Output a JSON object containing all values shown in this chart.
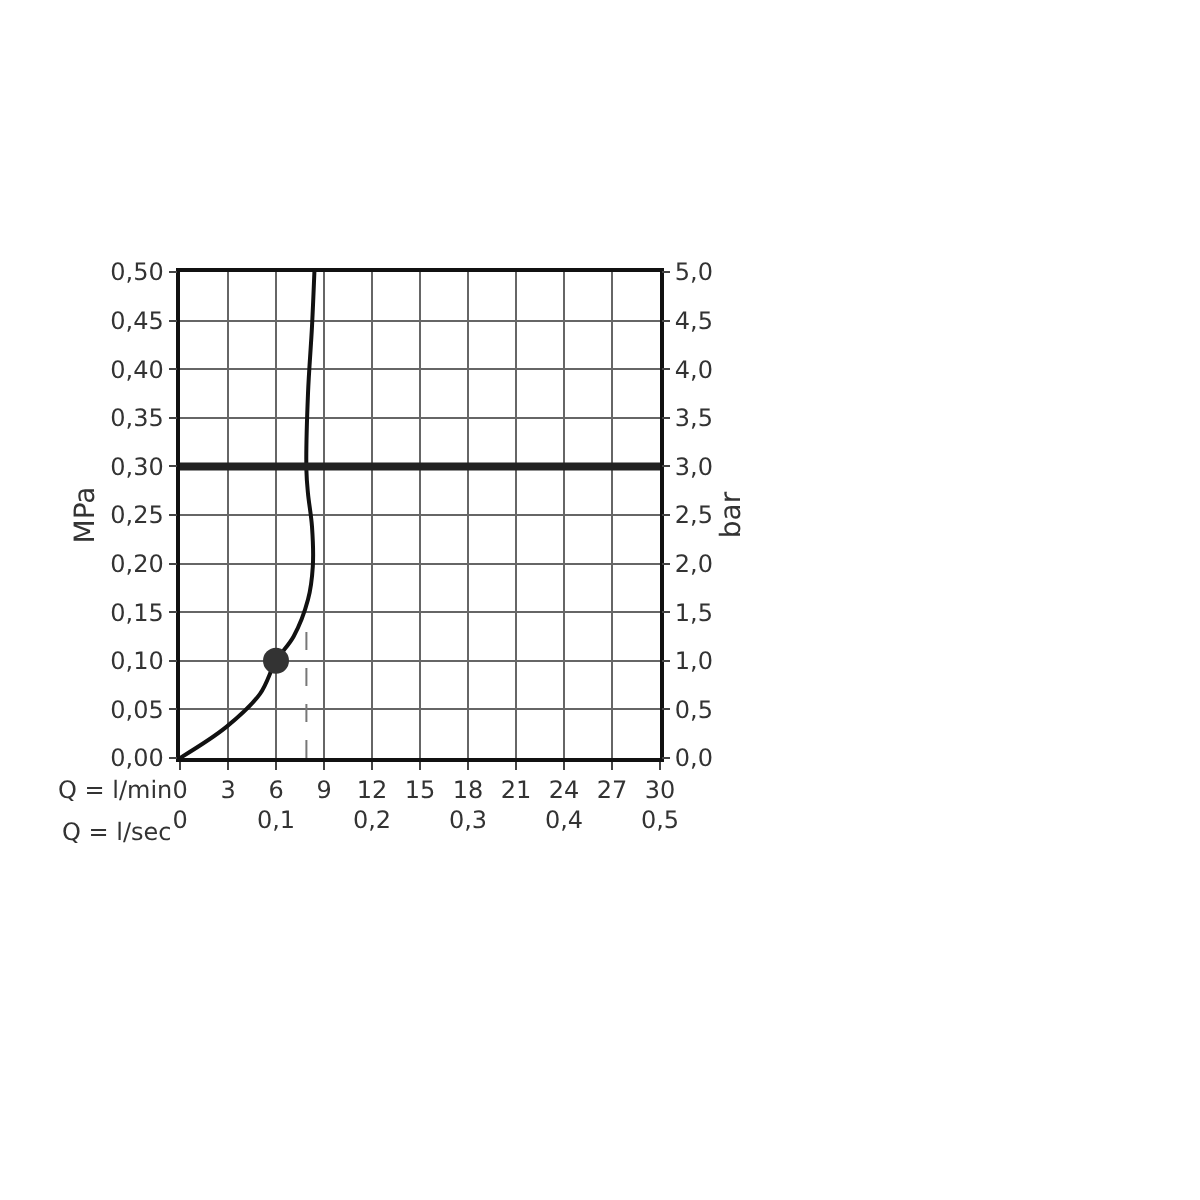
{
  "chart_data": {
    "type": "line",
    "xlabel": "Q = l/min",
    "x2label": "Q = l/sec",
    "ylabel": "MPa",
    "y2label": "bar",
    "xlim": [
      0,
      30
    ],
    "xticks": [
      0,
      3,
      6,
      9,
      12,
      15,
      18,
      21,
      24,
      27,
      30
    ],
    "x2lim": [
      0,
      0.5
    ],
    "x2ticks": [
      0,
      {
        "value": 0.1,
        "label": "0,1"
      },
      {
        "value": 0.2,
        "label": "0,2"
      },
      {
        "value": 0.3,
        "label": "0,3"
      },
      {
        "value": 0.4,
        "label": "0,4"
      },
      {
        "value": 0.5,
        "label": "0,5"
      }
    ],
    "ylim": [
      0,
      0.5
    ],
    "yticks": [
      {
        "value": 0,
        "label": "0,00"
      },
      {
        "value": 0.05,
        "label": "0,05"
      },
      {
        "value": 0.1,
        "label": "0,10"
      },
      {
        "value": 0.15,
        "label": "0,15"
      },
      {
        "value": 0.2,
        "label": "0,20"
      },
      {
        "value": 0.25,
        "label": "0,25"
      },
      {
        "value": 0.3,
        "label": "0,30"
      },
      {
        "value": 0.35,
        "label": "0,35"
      },
      {
        "value": 0.4,
        "label": "0,40"
      },
      {
        "value": 0.45,
        "label": "0,45"
      },
      {
        "value": 0.5,
        "label": "0,50"
      }
    ],
    "y2lim": [
      0,
      5
    ],
    "y2ticks": [
      {
        "value": 0,
        "label": "0,0"
      },
      {
        "value": 0.5,
        "label": "0,5"
      },
      {
        "value": 1,
        "label": "1,0"
      },
      {
        "value": 1.5,
        "label": "1,5"
      },
      {
        "value": 2,
        "label": "2,0"
      },
      {
        "value": 2.5,
        "label": "2,5"
      },
      {
        "value": 3,
        "label": "3,0"
      },
      {
        "value": 3.5,
        "label": "3,5"
      },
      {
        "value": 4,
        "label": "4,0"
      },
      {
        "value": 4.5,
        "label": "4,5"
      },
      {
        "value": 5,
        "label": "5,0"
      }
    ],
    "grid": true,
    "series": [
      {
        "color": "#111111",
        "line_style": "solid",
        "marker": "none",
        "x": [
          0,
          2.9,
          5,
          6,
          7.1,
          8,
          8.3,
          8.25,
          8,
          7.9,
          8,
          8.25,
          8.4
        ],
        "values": [
          0,
          0.032,
          0.066,
          0.1,
          0.125,
          0.163,
          0.197,
          0.238,
          0.272,
          0.296,
          0.375,
          0.444,
          0.5
        ]
      },
      {
        "color": "#777777",
        "line_style": "dashed",
        "marker": "none",
        "x": [
          7.9,
          7.9
        ],
        "values": [
          0,
          0.14
        ]
      },
      {
        "type": "scatter",
        "color": "#333333",
        "marker": "circle",
        "x": [
          6
        ],
        "values": [
          0.1
        ]
      }
    ],
    "ref_lines": [
      {
        "axis": "y",
        "value": 0.3,
        "color": "#222222"
      }
    ]
  }
}
